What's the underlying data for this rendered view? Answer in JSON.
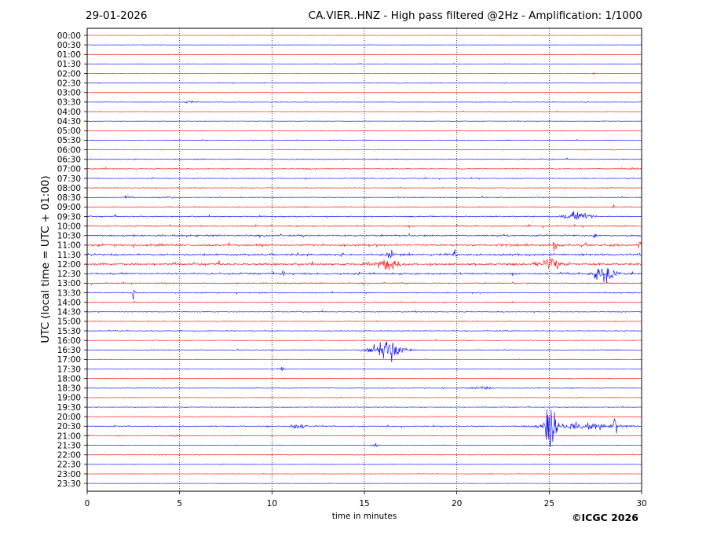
{
  "header": {
    "date": "29-01-2026",
    "title": "CA.VIER..HNZ - High pass filtered @2Hz - Amplification: 1/1000"
  },
  "footer": {
    "credit": "©ICGC 2026"
  },
  "colors": {
    "trace_a": "#ff0000",
    "trace_b": "#0000ff",
    "gridline": "#000000",
    "axes": "#000000"
  },
  "chart_data": {
    "type": "line",
    "xlabel": "time in minutes",
    "ylabel": "UTC (local time = UTC + 01:00)",
    "xlim": [
      0,
      30
    ],
    "x_ticks": [
      0,
      5,
      10,
      15,
      20,
      25,
      30
    ],
    "grid": "vertical dotted lines at 5-minute ticks",
    "trace_colors": "alternating red/blue per row",
    "rows": [
      "00:00",
      "00:30",
      "01:00",
      "01:30",
      "02:00",
      "02:30",
      "03:00",
      "03:30",
      "04:00",
      "04:30",
      "05:00",
      "05:30",
      "06:00",
      "06:30",
      "07:00",
      "07:30",
      "08:00",
      "08:30",
      "09:00",
      "09:30",
      "10:00",
      "10:30",
      "11:00",
      "11:30",
      "12:00",
      "12:30",
      "13:00",
      "13:30",
      "14:00",
      "14:30",
      "15:00",
      "15:30",
      "16:00",
      "16:30",
      "17:00",
      "17:30",
      "18:00",
      "18:30",
      "19:00",
      "19:30",
      "20:00",
      "20:30",
      "21:00",
      "21:30",
      "22:00",
      "22:30",
      "23:00",
      "23:30"
    ],
    "noise_level": [
      0.2,
      0.2,
      0.2,
      0.3,
      0.2,
      0.3,
      0.2,
      0.3,
      0.3,
      0.3,
      0.3,
      0.4,
      0.4,
      0.5,
      0.6,
      0.5,
      0.4,
      0.5,
      0.5,
      0.7,
      0.8,
      1.0,
      1.3,
      1.2,
      1.3,
      1.1,
      0.7,
      0.6,
      0.5,
      0.5,
      0.4,
      0.4,
      0.4,
      0.4,
      0.3,
      0.3,
      0.3,
      0.4,
      0.3,
      0.3,
      0.3,
      0.6,
      0.4,
      0.3,
      0.3,
      0.3,
      0.2,
      0.2
    ],
    "events": [
      {
        "row": "02:00",
        "minute": 27.4,
        "amplitude": 2.5,
        "duration": 0.1
      },
      {
        "row": "02:30",
        "minute": 16.9,
        "amplitude": 2.5,
        "duration": 0.1
      },
      {
        "row": "03:30",
        "minute": 5.5,
        "amplitude": 1.5,
        "duration": 0.8
      },
      {
        "row": "07:00",
        "minute": 29.6,
        "amplitude": 2.0,
        "duration": 0.6
      },
      {
        "row": "08:30",
        "minute": 2.2,
        "amplitude": 2.0,
        "duration": 0.6
      },
      {
        "row": "08:30",
        "minute": 4.5,
        "amplitude": 2.0,
        "duration": 0.5
      },
      {
        "row": "08:30",
        "minute": 28.9,
        "amplitude": 5.0,
        "duration": 0.15
      },
      {
        "row": "09:00",
        "minute": 28.5,
        "amplitude": 6.0,
        "duration": 0.1
      },
      {
        "row": "09:30",
        "minute": 26.6,
        "amplitude": 6.0,
        "duration": 1.6
      },
      {
        "row": "10:30",
        "minute": 27.5,
        "amplitude": 6.0,
        "duration": 0.15
      },
      {
        "row": "11:00",
        "minute": 25.3,
        "amplitude": 7.0,
        "duration": 0.2
      },
      {
        "row": "11:00",
        "minute": 29.9,
        "amplitude": 8.0,
        "duration": 0.2
      },
      {
        "row": "11:30",
        "minute": 16.4,
        "amplitude": 7.0,
        "duration": 0.3
      },
      {
        "row": "11:30",
        "minute": 19.9,
        "amplitude": 5.0,
        "duration": 0.3
      },
      {
        "row": "12:00",
        "minute": 16.2,
        "amplitude": 6.0,
        "duration": 1.5
      },
      {
        "row": "12:00",
        "minute": 25.1,
        "amplitude": 7.0,
        "duration": 1.4
      },
      {
        "row": "12:30",
        "minute": 10.6,
        "amplitude": 5.0,
        "duration": 0.2
      },
      {
        "row": "12:30",
        "minute": 28.0,
        "amplitude": 10.0,
        "duration": 1.3
      },
      {
        "row": "13:30",
        "minute": 2.5,
        "amplitude": 9.0,
        "duration": 0.2
      },
      {
        "row": "16:30",
        "minute": 16.2,
        "amplitude": 16.0,
        "duration": 1.8
      },
      {
        "row": "17:30",
        "minute": 10.5,
        "amplitude": 3.0,
        "duration": 0.5
      },
      {
        "row": "18:30",
        "minute": 21.4,
        "amplitude": 2.0,
        "duration": 1.0
      },
      {
        "row": "20:30",
        "minute": 11.4,
        "amplitude": 4.0,
        "duration": 0.9
      },
      {
        "row": "20:30",
        "minute": 25.1,
        "amplitude": 40.0,
        "duration": 0.6
      },
      {
        "row": "20:30",
        "minute": 26.5,
        "amplitude": 4.0,
        "duration": 4.5
      },
      {
        "row": "20:30",
        "minute": 28.6,
        "amplitude": 15.0,
        "duration": 0.2
      },
      {
        "row": "21:00",
        "minute": 0.1,
        "amplitude": 3.0,
        "duration": 0.3
      },
      {
        "row": "21:00",
        "minute": 4.7,
        "amplitude": 2.0,
        "duration": 0.5
      },
      {
        "row": "21:30",
        "minute": 15.6,
        "amplitude": 1.5,
        "duration": 0.5
      }
    ]
  }
}
